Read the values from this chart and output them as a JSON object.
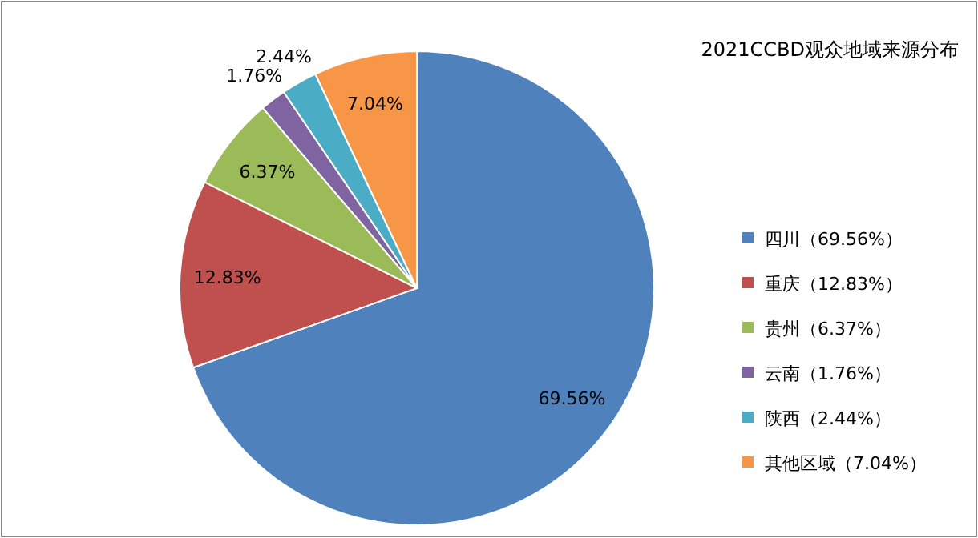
{
  "chart_data": {
    "type": "pie",
    "title": "2021CCBD观众地域来源分布",
    "categories": [
      "四川（69.56%）",
      "重庆（12.83%）",
      "贵州（6.37%）",
      "云南（1.76%）",
      "陕西（2.44%）",
      "其他区域（7.04%）"
    ],
    "values": [
      69.56,
      12.83,
      6.37,
      1.76,
      2.44,
      7.04
    ],
    "value_labels": [
      "69.56%",
      "12.83%",
      "6.37%",
      "1.76%",
      "2.44%",
      "7.04%"
    ],
    "colors": [
      "#4f81bd",
      "#c0504d",
      "#9bbb59",
      "#8064a2",
      "#4bacc6",
      "#f79646"
    ],
    "legend": "right"
  }
}
